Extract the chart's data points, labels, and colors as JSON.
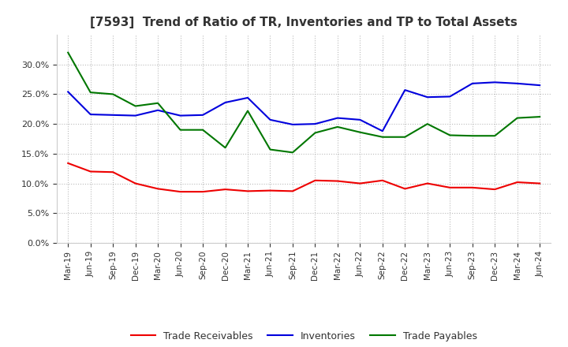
{
  "title": "[7593]  Trend of Ratio of TR, Inventories and TP to Total Assets",
  "x_labels": [
    "Mar-19",
    "Jun-19",
    "Sep-19",
    "Dec-19",
    "Mar-20",
    "Jun-20",
    "Sep-20",
    "Dec-20",
    "Mar-21",
    "Jun-21",
    "Sep-21",
    "Dec-21",
    "Mar-22",
    "Jun-22",
    "Sep-22",
    "Dec-22",
    "Mar-23",
    "Jun-23",
    "Sep-23",
    "Dec-23",
    "Mar-24",
    "Jun-24"
  ],
  "trade_receivables": [
    0.134,
    0.12,
    0.119,
    0.1,
    0.091,
    0.086,
    0.086,
    0.09,
    0.087,
    0.088,
    0.087,
    0.105,
    0.104,
    0.1,
    0.105,
    0.091,
    0.1,
    0.093,
    0.093,
    0.09,
    0.102,
    0.1
  ],
  "inventories": [
    0.254,
    0.216,
    0.215,
    0.214,
    0.223,
    0.214,
    0.215,
    0.236,
    0.244,
    0.207,
    0.199,
    0.2,
    0.21,
    0.207,
    0.188,
    0.257,
    0.245,
    0.246,
    0.268,
    0.27,
    0.268,
    0.265
  ],
  "trade_payables": [
    0.32,
    0.253,
    0.25,
    0.23,
    0.235,
    0.19,
    0.19,
    0.16,
    0.222,
    0.157,
    0.152,
    0.185,
    0.195,
    0.186,
    0.178,
    0.178,
    0.2,
    0.181,
    0.18,
    0.18,
    0.21,
    0.212
  ],
  "tr_color": "#ee0000",
  "inv_color": "#0000dd",
  "tp_color": "#007700",
  "ylim": [
    0.0,
    0.35
  ],
  "yticks": [
    0.0,
    0.05,
    0.1,
    0.15,
    0.2,
    0.25,
    0.3
  ],
  "background_color": "#ffffff",
  "grid_color": "#bbbbbb",
  "legend_labels": [
    "Trade Receivables",
    "Inventories",
    "Trade Payables"
  ]
}
